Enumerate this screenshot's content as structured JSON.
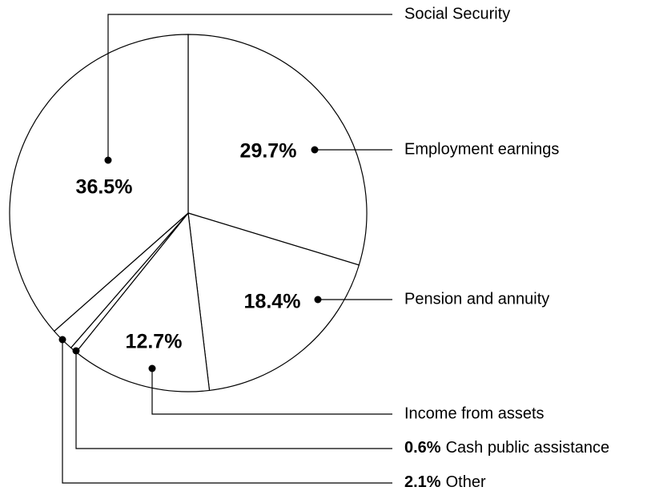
{
  "chart_data": {
    "type": "pie",
    "categories": [
      "Employment earnings",
      "Pension and annuity",
      "Income from assets",
      "Cash public assistance",
      "Other",
      "Social Security"
    ],
    "values": [
      29.7,
      18.4,
      12.7,
      0.6,
      2.1,
      36.5
    ],
    "value_labels": [
      "29.7%",
      "18.4%",
      "12.7%",
      "0.6%",
      "2.1%",
      "36.5%"
    ],
    "color": "#ffffff"
  }
}
